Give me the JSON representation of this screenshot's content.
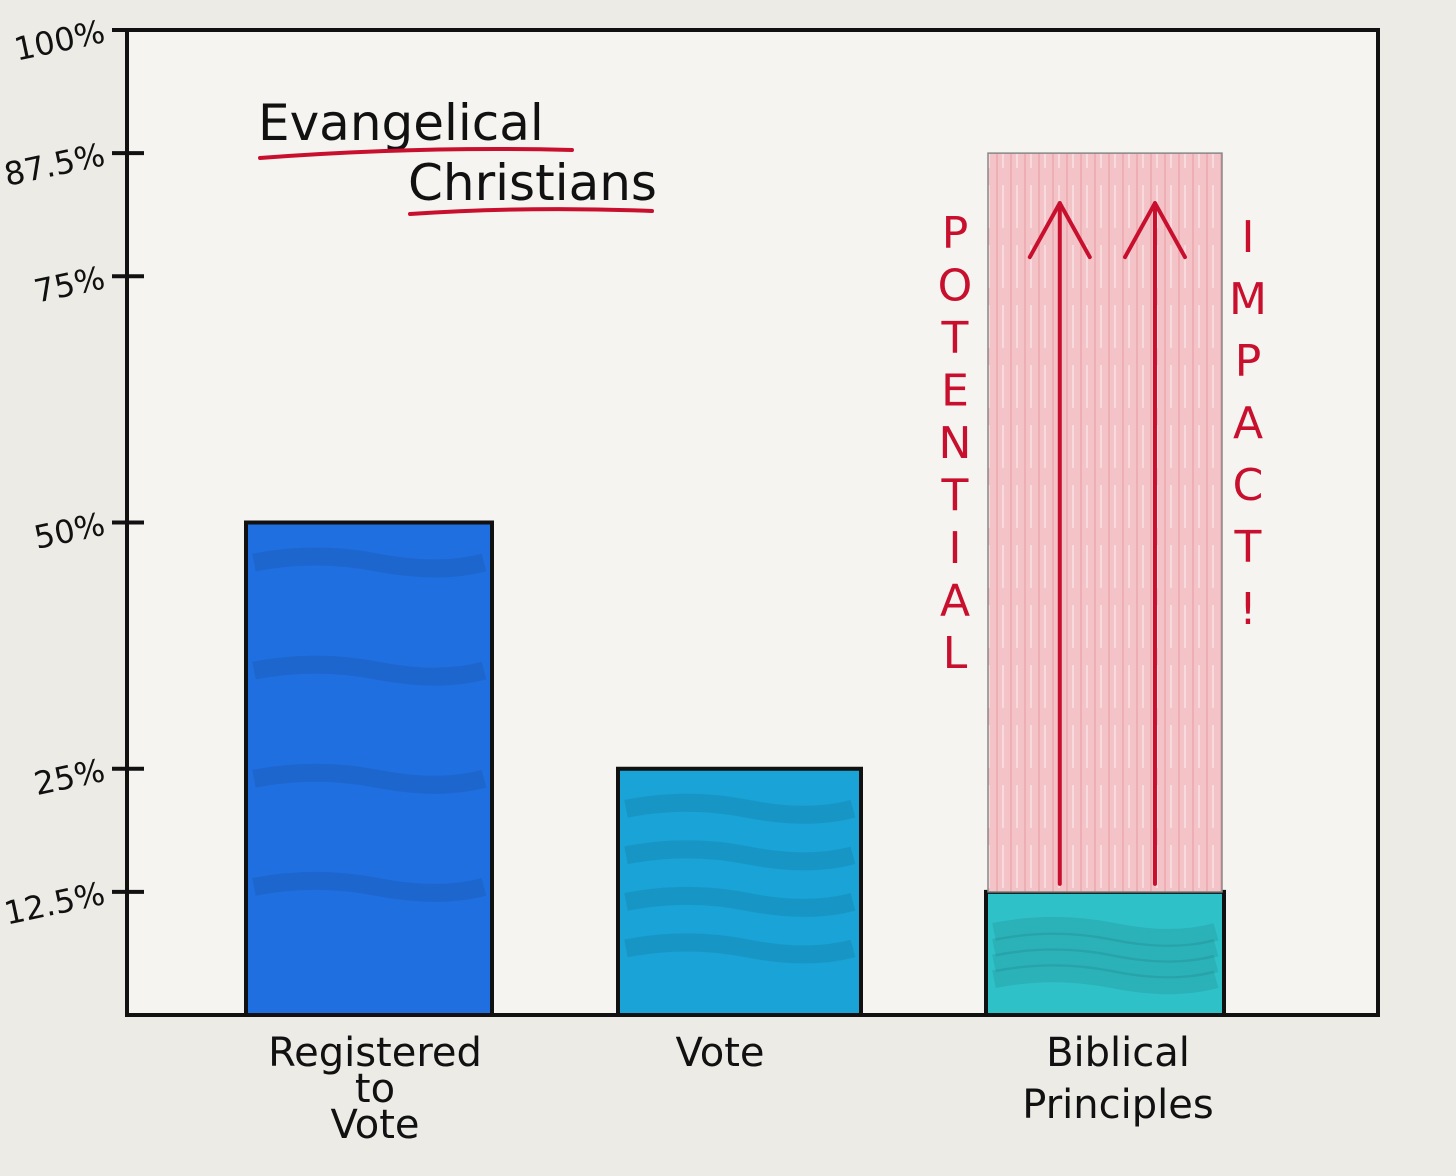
{
  "chart_data": {
    "type": "bar",
    "title": "Evangelical Christians",
    "title_lines": [
      "Evangelical",
      "Christians"
    ],
    "categories": [
      "Registered to Vote",
      "Vote",
      "Biblical Principles"
    ],
    "category_label_lines": [
      [
        "Registered",
        "to",
        "Vote"
      ],
      [
        "Vote"
      ],
      [
        "Biblical",
        "Principles"
      ]
    ],
    "values": [
      50,
      25,
      12.5
    ],
    "potential": {
      "category": "Biblical Principles",
      "from": 12.5,
      "to": 87.5,
      "left_label": "POTENTIAL",
      "right_label": "IMPACT!"
    },
    "y_ticks": [
      12.5,
      25,
      50,
      75,
      87.5,
      100
    ],
    "y_tick_labels": [
      "12.5%",
      "25%",
      "50%",
      "75%",
      "87.5%",
      "100%"
    ],
    "ylim": [
      0,
      100
    ],
    "grid": false,
    "colors": {
      "registered": "#1f6fe0",
      "vote": "#19a3d6",
      "biblical": "#2fc1c8",
      "potential_fill": "#f2b8bf",
      "accent_red": "#c8102e",
      "ink": "#111111"
    }
  }
}
